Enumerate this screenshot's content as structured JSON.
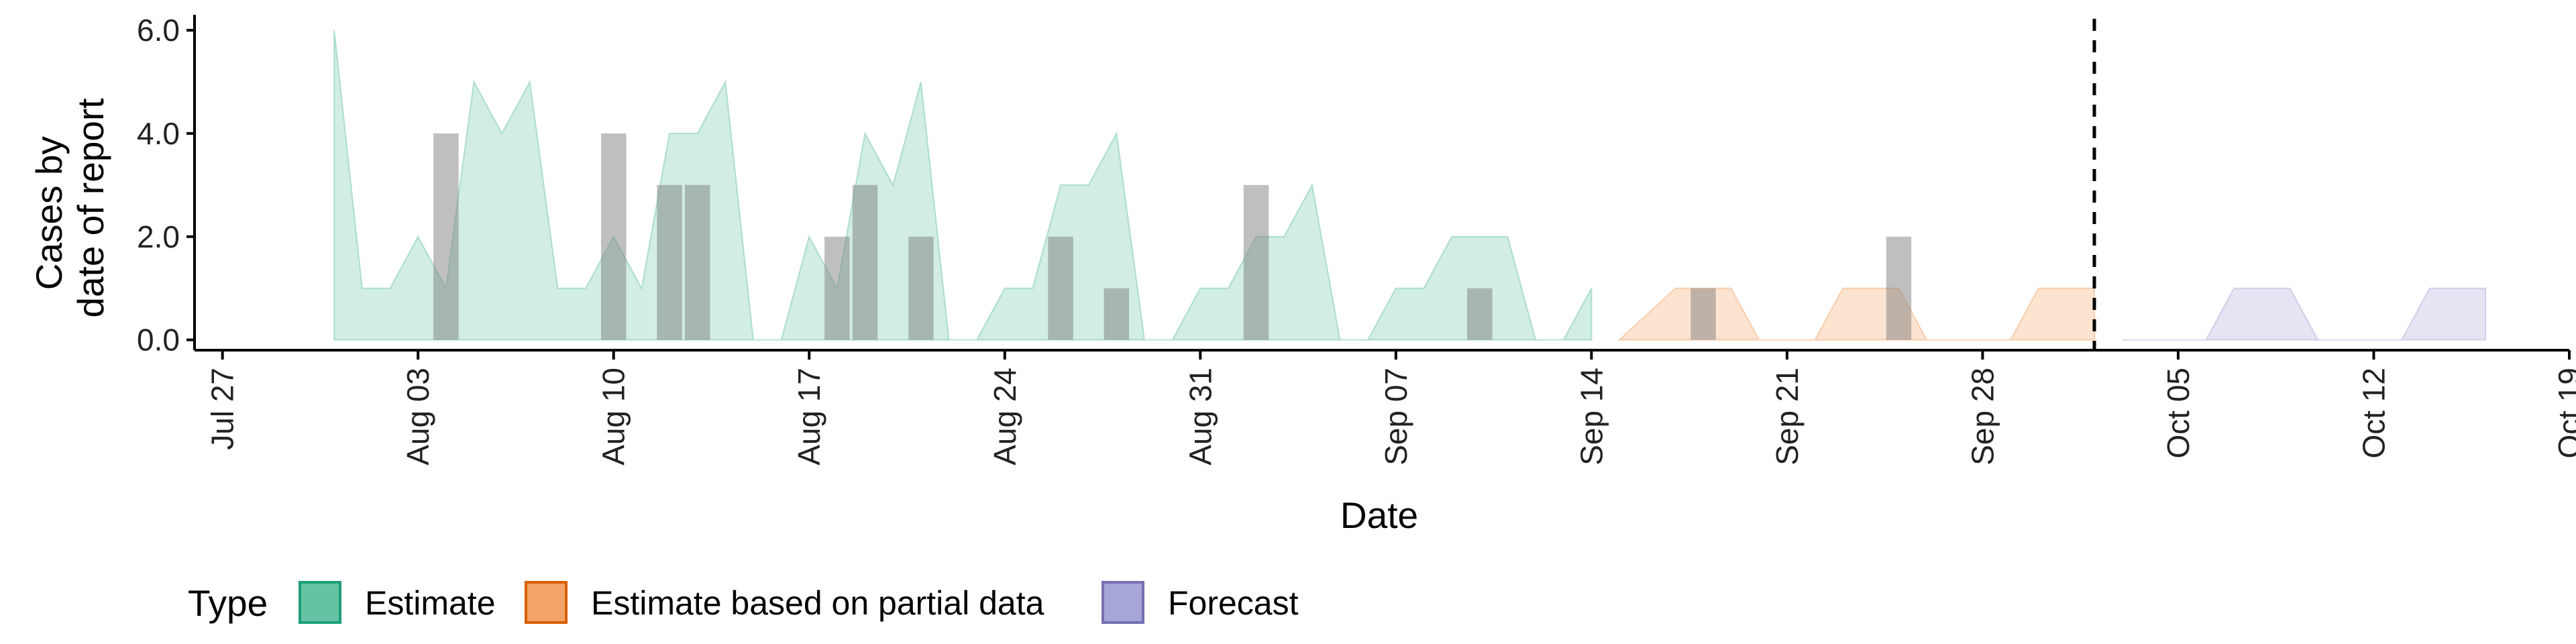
{
  "chart_data": {
    "type": "area",
    "xlabel": "Date",
    "ylabel_lines": [
      "Cases by",
      "date of report"
    ],
    "y_ticks": [
      "0.0",
      "2.0",
      "4.0",
      "6.0"
    ],
    "ylim": [
      -0.2,
      6.3
    ],
    "x_range": [
      "2020-07-26",
      "2020-10-19"
    ],
    "x_ticks": [
      {
        "date": "2020-07-27",
        "label": "Jul 27"
      },
      {
        "date": "2020-08-03",
        "label": "Aug 03"
      },
      {
        "date": "2020-08-10",
        "label": "Aug 10"
      },
      {
        "date": "2020-08-17",
        "label": "Aug 17"
      },
      {
        "date": "2020-08-24",
        "label": "Aug 24"
      },
      {
        "date": "2020-08-31",
        "label": "Aug 31"
      },
      {
        "date": "2020-09-07",
        "label": "Sep 07"
      },
      {
        "date": "2020-09-14",
        "label": "Sep 14"
      },
      {
        "date": "2020-09-21",
        "label": "Sep 21"
      },
      {
        "date": "2020-09-28",
        "label": "Sep 28"
      },
      {
        "date": "2020-10-05",
        "label": "Oct 05"
      },
      {
        "date": "2020-10-12",
        "label": "Oct 12"
      },
      {
        "date": "2020-10-19",
        "label": "Oct 19"
      }
    ],
    "vline_date": "2020-10-02",
    "grid": false,
    "legend": {
      "title": "Type",
      "position": "bottom-left",
      "entries": [
        {
          "label": "Estimate",
          "fill": "#66c2a5",
          "stroke": "#1b9e77"
        },
        {
          "label": "Estimate based on partial data",
          "fill": "#f4a468",
          "stroke": "#d95f02"
        },
        {
          "label": "Forecast",
          "fill": "#a6a6d8",
          "stroke": "#7570b3"
        }
      ]
    },
    "series": [
      {
        "name": "Estimate",
        "color": "#66c2a5",
        "points": [
          [
            "2020-07-31",
            6
          ],
          [
            "2020-08-01",
            1
          ],
          [
            "2020-08-02",
            1
          ],
          [
            "2020-08-03",
            2
          ],
          [
            "2020-08-04",
            1
          ],
          [
            "2020-08-05",
            5
          ],
          [
            "2020-08-06",
            4
          ],
          [
            "2020-08-07",
            5
          ],
          [
            "2020-08-08",
            1
          ],
          [
            "2020-08-09",
            1
          ],
          [
            "2020-08-10",
            2
          ],
          [
            "2020-08-11",
            1
          ],
          [
            "2020-08-12",
            4
          ],
          [
            "2020-08-13",
            4
          ],
          [
            "2020-08-14",
            5
          ],
          [
            "2020-08-15",
            0
          ],
          [
            "2020-08-16",
            0
          ],
          [
            "2020-08-17",
            2
          ],
          [
            "2020-08-18",
            1
          ],
          [
            "2020-08-19",
            4
          ],
          [
            "2020-08-20",
            3
          ],
          [
            "2020-08-21",
            5
          ],
          [
            "2020-08-22",
            0
          ],
          [
            "2020-08-23",
            0
          ],
          [
            "2020-08-24",
            1
          ],
          [
            "2020-08-25",
            1
          ],
          [
            "2020-08-26",
            3
          ],
          [
            "2020-08-27",
            3
          ],
          [
            "2020-08-28",
            4
          ],
          [
            "2020-08-29",
            0
          ],
          [
            "2020-08-30",
            0
          ],
          [
            "2020-08-31",
            1
          ],
          [
            "2020-09-01",
            1
          ],
          [
            "2020-09-02",
            2
          ],
          [
            "2020-09-03",
            2
          ],
          [
            "2020-09-04",
            3
          ],
          [
            "2020-09-05",
            0
          ],
          [
            "2020-09-06",
            0
          ],
          [
            "2020-09-07",
            1
          ],
          [
            "2020-09-08",
            1
          ],
          [
            "2020-09-09",
            2
          ],
          [
            "2020-09-10",
            2
          ],
          [
            "2020-09-11",
            2
          ],
          [
            "2020-09-12",
            0
          ],
          [
            "2020-09-13",
            0
          ],
          [
            "2020-09-14",
            1
          ]
        ]
      },
      {
        "name": "Estimate based on partial data",
        "color": "#f4a468",
        "points": [
          [
            "2020-09-15",
            0
          ],
          [
            "2020-09-16",
            0.5
          ],
          [
            "2020-09-17",
            1
          ],
          [
            "2020-09-18",
            1
          ],
          [
            "2020-09-19",
            1
          ],
          [
            "2020-09-20",
            0
          ],
          [
            "2020-09-21",
            0
          ],
          [
            "2020-09-22",
            0
          ],
          [
            "2020-09-23",
            1
          ],
          [
            "2020-09-24",
            1
          ],
          [
            "2020-09-25",
            1
          ],
          [
            "2020-09-26",
            0
          ],
          [
            "2020-09-27",
            0
          ],
          [
            "2020-09-28",
            0
          ],
          [
            "2020-09-29",
            0
          ],
          [
            "2020-09-30",
            1
          ],
          [
            "2020-10-01",
            1
          ],
          [
            "2020-10-02",
            1
          ]
        ]
      },
      {
        "name": "Forecast",
        "color": "#a6a6d8",
        "points": [
          [
            "2020-10-03",
            0
          ],
          [
            "2020-10-04",
            0
          ],
          [
            "2020-10-05",
            0
          ],
          [
            "2020-10-06",
            0
          ],
          [
            "2020-10-07",
            1
          ],
          [
            "2020-10-08",
            1
          ],
          [
            "2020-10-09",
            1
          ],
          [
            "2020-10-10",
            0
          ],
          [
            "2020-10-11",
            0
          ],
          [
            "2020-10-12",
            0
          ],
          [
            "2020-10-13",
            0
          ],
          [
            "2020-10-14",
            1
          ],
          [
            "2020-10-15",
            1
          ],
          [
            "2020-10-16",
            1
          ]
        ]
      }
    ],
    "reported_bars": {
      "color": "#808080",
      "points": [
        [
          "2020-08-04",
          4
        ],
        [
          "2020-08-10",
          4
        ],
        [
          "2020-08-12",
          3
        ],
        [
          "2020-08-13",
          3
        ],
        [
          "2020-08-18",
          2
        ],
        [
          "2020-08-19",
          3
        ],
        [
          "2020-08-21",
          2
        ],
        [
          "2020-08-26",
          2
        ],
        [
          "2020-08-28",
          1
        ],
        [
          "2020-09-02",
          3
        ],
        [
          "2020-09-10",
          1
        ],
        [
          "2020-09-18",
          1
        ],
        [
          "2020-09-25",
          2
        ]
      ]
    }
  }
}
